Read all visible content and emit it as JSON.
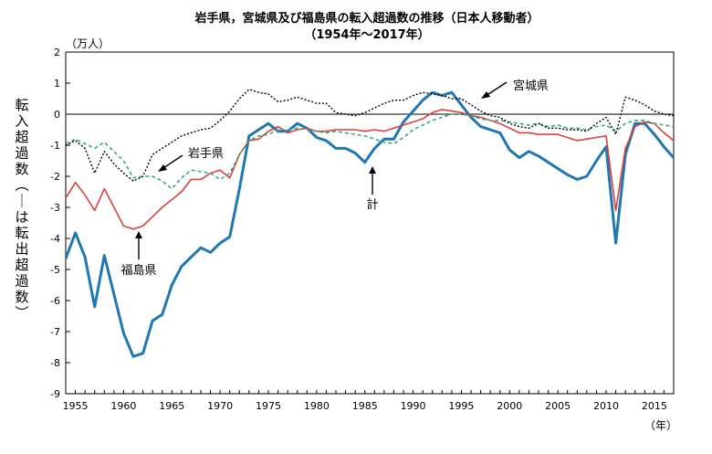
{
  "chart_data": {
    "type": "line",
    "title": "岩手県，宮城県及び福島県の転入超過数の推移（日本人移動者）",
    "subtitle": "（1954年～2017年）",
    "unit_label": "（万人）",
    "ylabel": "転入超過数（－は転出超過数）",
    "xlabel": "（年）",
    "xlim": [
      1954,
      2017
    ],
    "ylim": [
      -9,
      2
    ],
    "y_ticks": [
      2,
      1,
      0,
      -1,
      -2,
      -3,
      -4,
      -5,
      -6,
      -7,
      -8,
      -9
    ],
    "x_ticks": [
      1955,
      1960,
      1965,
      1970,
      1975,
      1980,
      1985,
      1990,
      1995,
      2000,
      2005,
      2010,
      2015
    ],
    "grid": false,
    "annotations": {
      "miyagi": "宮城県",
      "iwate": "岩手県",
      "total": "計",
      "fukushima": "福島県"
    },
    "x": [
      1954,
      1955,
      1956,
      1957,
      1958,
      1959,
      1960,
      1961,
      1962,
      1963,
      1964,
      1965,
      1966,
      1967,
      1968,
      1969,
      1970,
      1971,
      1972,
      1973,
      1974,
      1975,
      1976,
      1977,
      1978,
      1979,
      1980,
      1981,
      1982,
      1983,
      1984,
      1985,
      1986,
      1987,
      1988,
      1989,
      1990,
      1991,
      1992,
      1993,
      1994,
      1995,
      1996,
      1997,
      1998,
      1999,
      2000,
      2001,
      2002,
      2003,
      2004,
      2005,
      2006,
      2007,
      2008,
      2009,
      2010,
      2011,
      2012,
      2013,
      2014,
      2015,
      2016,
      2017
    ],
    "series": [
      {
        "key": "total",
        "color": "#1f77b4",
        "values": [
          -4.65,
          -3.82,
          -4.6,
          -6.2,
          -4.55,
          -5.8,
          -7.05,
          -7.8,
          -7.7,
          -6.65,
          -6.45,
          -5.5,
          -4.9,
          -4.6,
          -4.3,
          -4.45,
          -4.15,
          -3.95,
          -2.4,
          -0.7,
          -0.5,
          -0.3,
          -0.55,
          -0.55,
          -0.3,
          -0.45,
          -0.75,
          -0.85,
          -1.1,
          -1.1,
          -1.25,
          -1.55,
          -1.1,
          -0.8,
          -0.8,
          -0.25,
          0.1,
          0.45,
          0.7,
          0.6,
          0.7,
          0.3,
          -0.1,
          -0.4,
          -0.5,
          -0.6,
          -1.15,
          -1.4,
          -1.2,
          -1.35,
          -1.55,
          -1.75,
          -1.95,
          -2.1,
          -2.0,
          -1.5,
          -1.05,
          -4.15,
          -1.3,
          -0.3,
          -0.3,
          -0.65,
          -1.05,
          -1.4
        ]
      },
      {
        "key": "fukushima",
        "color": "#d9423a",
        "values": [
          -2.7,
          -2.2,
          -2.6,
          -3.1,
          -2.4,
          -3.0,
          -3.6,
          -3.7,
          -3.6,
          -3.3,
          -3.0,
          -2.75,
          -2.5,
          -2.1,
          -2.1,
          -1.9,
          -1.8,
          -2.05,
          -1.3,
          -0.85,
          -0.8,
          -0.55,
          -0.4,
          -0.6,
          -0.5,
          -0.45,
          -0.55,
          -0.55,
          -0.5,
          -0.5,
          -0.5,
          -0.55,
          -0.5,
          -0.55,
          -0.45,
          -0.35,
          -0.25,
          -0.15,
          0.05,
          0.15,
          0.1,
          0.05,
          -0.05,
          -0.1,
          -0.2,
          -0.3,
          -0.45,
          -0.6,
          -0.6,
          -0.65,
          -0.65,
          -0.65,
          -0.75,
          -0.85,
          -0.8,
          -0.75,
          -0.7,
          -3.1,
          -1.1,
          -0.4,
          -0.25,
          -0.3,
          -0.6,
          -0.85
        ]
      },
      {
        "key": "iwate",
        "color": "#3aa68a",
        "values": [
          -0.95,
          -0.8,
          -0.95,
          -1.1,
          -0.9,
          -1.2,
          -1.5,
          -2.05,
          -2.0,
          -2.0,
          -2.15,
          -2.4,
          -2.05,
          -1.8,
          -1.85,
          -1.9,
          -2.1,
          -1.9,
          -1.3,
          -0.85,
          -0.7,
          -0.65,
          -0.5,
          -0.5,
          -0.45,
          -0.5,
          -0.55,
          -0.6,
          -0.55,
          -0.6,
          -0.65,
          -0.7,
          -0.8,
          -0.9,
          -0.95,
          -0.75,
          -0.5,
          -0.35,
          -0.2,
          -0.1,
          0.0,
          0.0,
          -0.05,
          -0.15,
          -0.2,
          -0.2,
          -0.25,
          -0.3,
          -0.35,
          -0.3,
          -0.4,
          -0.35,
          -0.45,
          -0.45,
          -0.5,
          -0.4,
          -0.35,
          -0.55,
          -0.3,
          -0.2,
          -0.2,
          -0.3,
          -0.35,
          -0.4
        ]
      },
      {
        "key": "miyagi",
        "color": "#000000",
        "values": [
          -1.0,
          -0.85,
          -1.1,
          -1.9,
          -1.2,
          -1.6,
          -1.9,
          -2.15,
          -2.0,
          -1.3,
          -1.1,
          -0.9,
          -0.7,
          -0.6,
          -0.5,
          -0.45,
          -0.2,
          0.1,
          0.5,
          0.8,
          0.7,
          0.65,
          0.4,
          0.45,
          0.55,
          0.45,
          0.35,
          0.35,
          0.05,
          0.0,
          -0.05,
          0.05,
          0.2,
          0.35,
          0.45,
          0.45,
          0.6,
          0.7,
          0.65,
          0.6,
          0.5,
          0.5,
          0.3,
          0.1,
          -0.05,
          -0.1,
          -0.3,
          -0.4,
          -0.45,
          -0.3,
          -0.45,
          -0.45,
          -0.5,
          -0.5,
          -0.55,
          -0.3,
          -0.1,
          -0.65,
          0.55,
          0.45,
          0.3,
          0.1,
          0.0,
          -0.05
        ]
      }
    ]
  }
}
